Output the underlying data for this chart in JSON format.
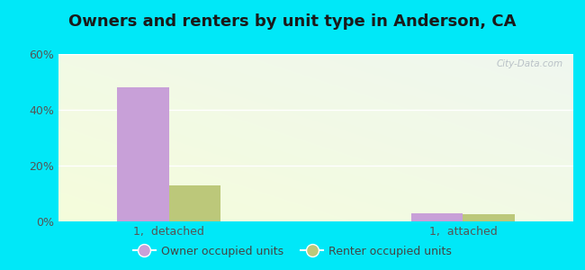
{
  "title": "Owners and renters by unit type in Anderson, CA",
  "categories": [
    "1,  detached",
    "1,  attached"
  ],
  "owner_values": [
    48.0,
    3.0
  ],
  "renter_values": [
    13.0,
    2.5
  ],
  "owner_color": "#c8a0d8",
  "renter_color": "#bcc87a",
  "ylim": [
    0,
    60
  ],
  "yticks": [
    0,
    20,
    40,
    60
  ],
  "ytick_labels": [
    "0%",
    "20%",
    "40%",
    "60%"
  ],
  "background_outer": "#00e8f8",
  "bar_width": 0.35,
  "group_positions": [
    1.0,
    3.0
  ],
  "xlim": [
    0.25,
    3.75
  ],
  "legend_owner": "Owner occupied units",
  "legend_renter": "Renter occupied units",
  "watermark": "City-Data.com",
  "title_fontsize": 13,
  "tick_fontsize": 9,
  "legend_fontsize": 9
}
